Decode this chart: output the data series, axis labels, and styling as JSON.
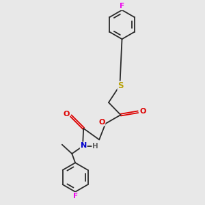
{
  "bg_color": "#e8e8e8",
  "bond_color": "#2a2a2a",
  "figsize": [
    3.0,
    3.0
  ],
  "dpi": 100,
  "atom_colors": {
    "F": "#ee00ee",
    "O": "#dd0000",
    "N": "#0000cc",
    "S": "#b8a000",
    "H": "#606060"
  }
}
